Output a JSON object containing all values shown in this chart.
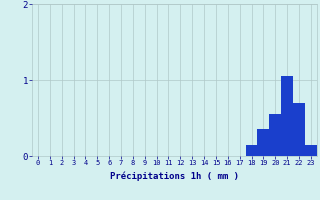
{
  "hours": [
    0,
    1,
    2,
    3,
    4,
    5,
    6,
    7,
    8,
    9,
    10,
    11,
    12,
    13,
    14,
    15,
    16,
    17,
    18,
    19,
    20,
    21,
    22,
    23
  ],
  "values": [
    0,
    0,
    0,
    0,
    0,
    0,
    0,
    0,
    0,
    0,
    0,
    0,
    0,
    0,
    0,
    0,
    0,
    0,
    0.15,
    0.35,
    0.55,
    1.05,
    0.7,
    0.15
  ],
  "bar_color": "#1a3fcc",
  "background_color": "#d4f0f0",
  "grid_color": "#b0c8c8",
  "xlabel": "Précipitations 1h ( mm )",
  "xlabel_color": "#00008b",
  "tick_color": "#00008b",
  "ylim": [
    0,
    2
  ],
  "yticks": [
    0,
    1,
    2
  ],
  "figsize": [
    3.2,
    2.0
  ],
  "dpi": 100
}
